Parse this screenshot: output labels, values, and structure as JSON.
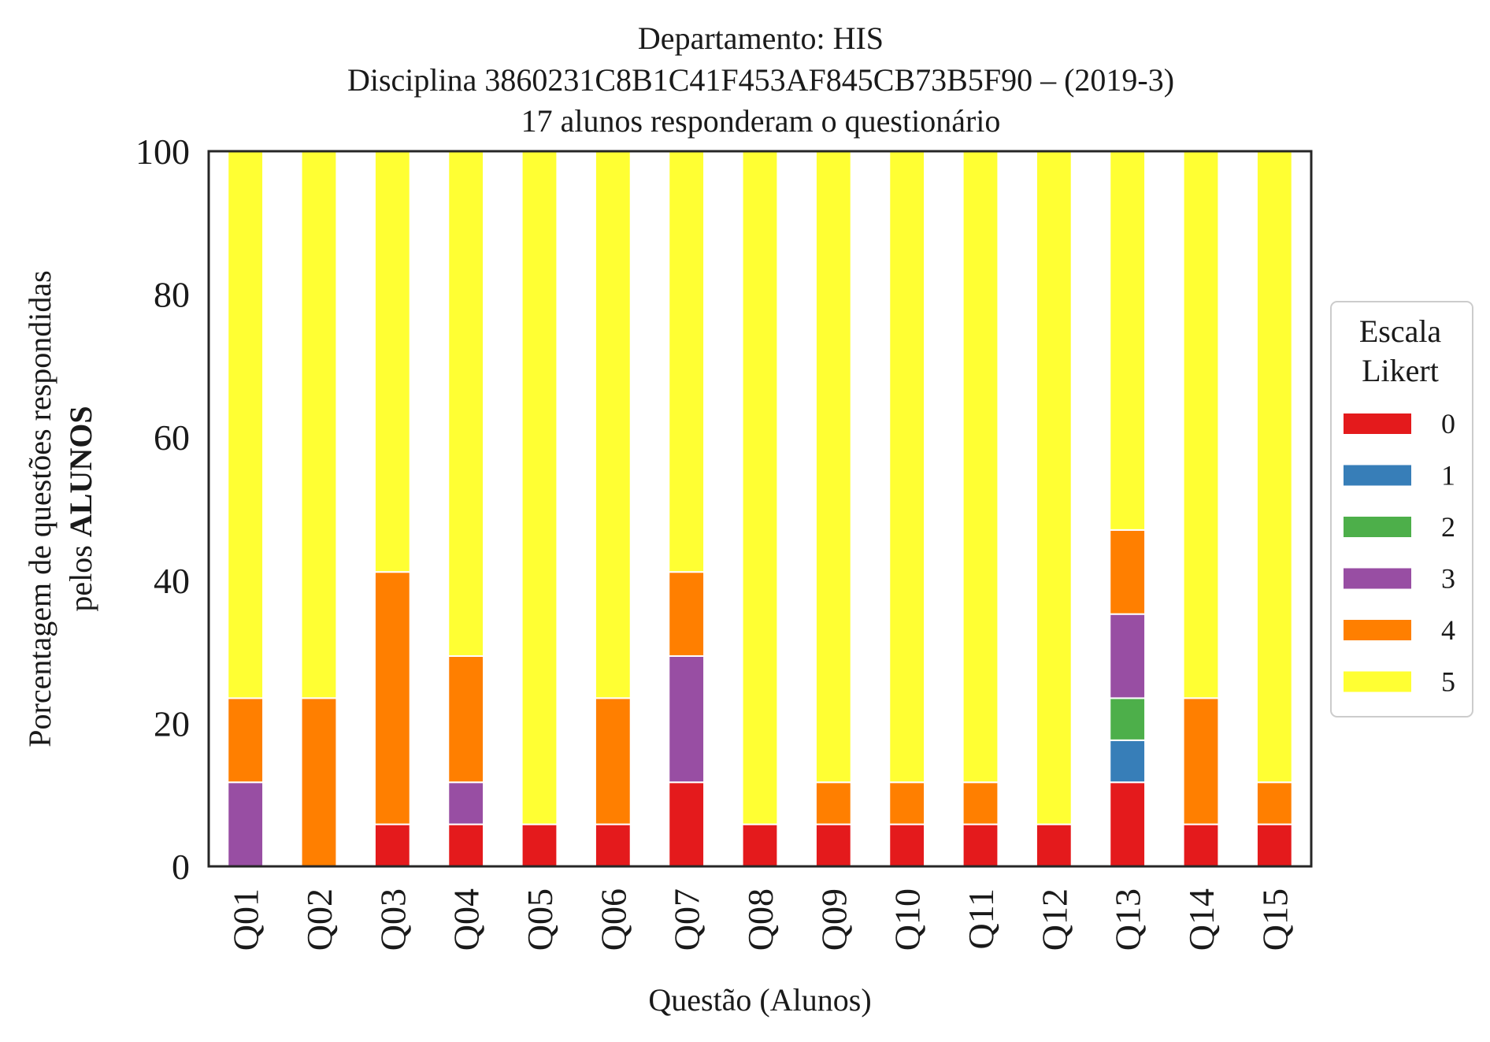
{
  "chart_data": {
    "type": "bar",
    "stacked": true,
    "title_lines": [
      "Departamento: HIS",
      "Disciplina 3860231C8B1C41F453AF845CB73B5F90 – (2019-3)",
      "17 alunos responderam o questionário"
    ],
    "xlabel": "Questão (Alunos)",
    "ylabel_line1": "Porcentagem de questões respondidas",
    "ylabel_line2_prefix": "pelos ",
    "ylabel_line2_bold": "ALUNOS",
    "ylim": [
      0,
      100
    ],
    "yticks": [
      "0",
      "20",
      "40",
      "60",
      "80",
      "100"
    ],
    "grid": false,
    "legend": {
      "title_lines": [
        "Escala",
        "Likert"
      ],
      "placement": "right-outside"
    },
    "categories": [
      "Q01",
      "Q02",
      "Q03",
      "Q04",
      "Q05",
      "Q06",
      "Q07",
      "Q08",
      "Q09",
      "Q10",
      "Q11",
      "Q12",
      "Q13",
      "Q14",
      "Q15"
    ],
    "series": [
      {
        "name": "0",
        "color": "#e41a1c",
        "values": [
          0,
          0,
          5.88,
          5.88,
          5.88,
          5.88,
          11.76,
          5.88,
          5.88,
          5.88,
          5.88,
          5.88,
          11.76,
          5.88,
          5.88
        ]
      },
      {
        "name": "1",
        "color": "#377eb8",
        "values": [
          0,
          0,
          0,
          0,
          0,
          0,
          0,
          0,
          0,
          0,
          0,
          0,
          5.88,
          0,
          0
        ]
      },
      {
        "name": "2",
        "color": "#4daf4a",
        "values": [
          0,
          0,
          0,
          0,
          0,
          0,
          0,
          0,
          0,
          0,
          0,
          0,
          5.88,
          0,
          0
        ]
      },
      {
        "name": "3",
        "color": "#984ea3",
        "values": [
          11.76,
          0,
          0,
          5.88,
          0,
          0,
          17.65,
          0,
          0,
          0,
          0,
          0,
          11.76,
          0,
          0
        ]
      },
      {
        "name": "4",
        "color": "#ff7f00",
        "values": [
          11.76,
          23.53,
          35.29,
          17.65,
          0,
          17.65,
          11.76,
          0,
          5.88,
          5.88,
          5.88,
          0,
          11.76,
          17.65,
          5.88
        ]
      },
      {
        "name": "5",
        "color": "#ffff33",
        "values": [
          76.47,
          76.47,
          58.82,
          70.59,
          94.12,
          76.47,
          58.82,
          94.12,
          88.24,
          88.24,
          88.24,
          94.12,
          52.94,
          76.47,
          88.24
        ]
      }
    ]
  }
}
